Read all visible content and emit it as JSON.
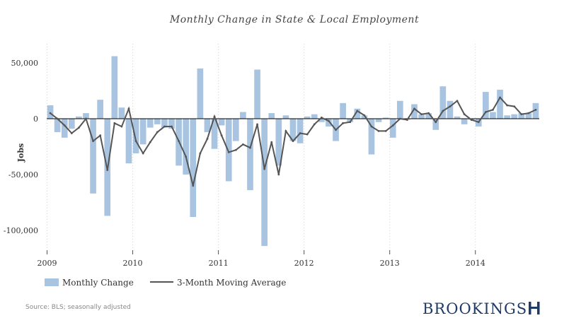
{
  "chart_data": {
    "type": "bar",
    "title": "Monthly Change in State & Local Employment",
    "ylabel": "Jobs",
    "ylim": [
      -120000,
      70000
    ],
    "yticks": [
      50000,
      0,
      -50000,
      -100000
    ],
    "ytick_labels": [
      "50,000",
      "0",
      "-50,000",
      "-100,000"
    ],
    "x_start": "2009-01",
    "x_end": "2014-09",
    "xtick_labels": [
      "2009",
      "2010",
      "2011",
      "2012",
      "2013",
      "2014"
    ],
    "grid": "vertical dotted at year starts",
    "legend_position": "bottom-left",
    "series": [
      {
        "name": "Monthly Change",
        "type": "bar",
        "color": "#a8c4e0",
        "values": [
          12000,
          -12000,
          -17000,
          -9000,
          2000,
          5000,
          -67000,
          17000,
          -87000,
          56000,
          10000,
          -40000,
          -31000,
          -23000,
          -8000,
          -5000,
          -8000,
          -9000,
          -42000,
          -50000,
          -88000,
          45000,
          -12000,
          -27000,
          -6000,
          -56000,
          -20000,
          6000,
          -64000,
          44000,
          -114000,
          5000,
          -42000,
          3000,
          -20000,
          -22000,
          2000,
          4000,
          -3000,
          -7000,
          -20000,
          14000,
          -3000,
          9000,
          3000,
          -32000,
          -3000,
          1000,
          -17000,
          16000,
          -1000,
          13000,
          4000,
          5000,
          -10000,
          29000,
          16000,
          2000,
          -5000,
          -1000,
          -7000,
          24000,
          6000,
          26000,
          3000,
          4000,
          5000,
          5000,
          14000
        ]
      },
      {
        "name": "3-Month Moving Average",
        "type": "line",
        "color": "#555555",
        "values": [
          5000,
          0,
          -6000,
          -13000,
          -8000,
          0,
          -20000,
          -15000,
          -46000,
          -4000,
          -7000,
          9000,
          -20000,
          -31000,
          -21000,
          -12000,
          -7000,
          -7000,
          -20000,
          -34000,
          -60000,
          -31000,
          -18000,
          2000,
          -15000,
          -30000,
          -28000,
          -23000,
          -26000,
          -5000,
          -45000,
          -21000,
          -50000,
          -11000,
          -20000,
          -13000,
          -14000,
          -5000,
          1000,
          -2000,
          -10000,
          -4000,
          -3000,
          7000,
          3000,
          -7000,
          -11000,
          -11000,
          -6000,
          0,
          -1000,
          9000,
          4000,
          5000,
          -3000,
          7000,
          11000,
          16000,
          4000,
          -1000,
          -3000,
          6000,
          8000,
          19000,
          12000,
          11000,
          4000,
          5000,
          8000
        ]
      }
    ]
  },
  "legend": {
    "bar_label": "Monthly Change",
    "line_label": "3-Month Moving Average"
  },
  "footer": {
    "source": "Source: BLS; seasonally adjusted",
    "brand": "BROOKINGS"
  }
}
